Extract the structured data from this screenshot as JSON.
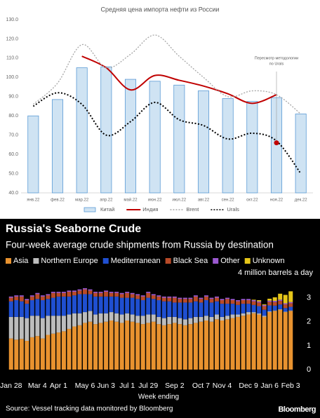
{
  "chart_data": [
    {
      "type": "combo",
      "title": "Средняя цена импорта нефти из России",
      "categories": [
        "янв.22",
        "фев.22",
        "мар.22",
        "апр.22",
        "май.22",
        "июн.22",
        "июл.22",
        "авг.22",
        "сен.22",
        "окт.22",
        "ноя.22",
        "дек.22"
      ],
      "ylim": [
        40,
        130
      ],
      "yticks": [
        {
          "value": 40,
          "label": "40.0"
        },
        {
          "value": 50,
          "label": "50.0"
        },
        {
          "value": 60,
          "label": "60.0"
        },
        {
          "value": 70,
          "label": "70.0"
        },
        {
          "value": 80,
          "label": "80.0"
        },
        {
          "value": 90,
          "label": "90.0"
        },
        {
          "value": 100,
          "label": "100.0"
        },
        {
          "value": 110,
          "label": "110.0"
        },
        {
          "value": 120,
          "label": "120.0"
        },
        {
          "value": 130,
          "label": "130.0"
        }
      ],
      "series": [
        {
          "name": "Китай",
          "kind": "bar",
          "color": "#cfe3f3",
          "stroke": "#5b9bd5",
          "values": [
            80,
            88.5,
            105,
            105.5,
            99,
            98,
            96,
            93,
            89,
            87.5,
            89.5,
            81
          ]
        },
        {
          "name": "Индия",
          "kind": "line",
          "dash": "solid",
          "color": "#c00000",
          "values": [
            null,
            null,
            111,
            105,
            93.5,
            101,
            98.5,
            95.5,
            91.5,
            86.5,
            91,
            null
          ]
        },
        {
          "name": "Brent",
          "kind": "line",
          "dash": "dotted",
          "color": "#a6a6a6",
          "values": [
            86,
            97,
            117,
            105,
            112,
            122,
            111,
            100,
            90,
            93,
            91,
            81
          ]
        },
        {
          "name": "Urals",
          "kind": "line",
          "dash": "dotted",
          "color": "#000000",
          "values": [
            85,
            92,
            86,
            70,
            77,
            87,
            78,
            75,
            68,
            71,
            67,
            50
          ]
        }
      ],
      "marker": {
        "category": "ноя.22",
        "value": 66,
        "color": "#c00000"
      },
      "annotation": [
        "Пересмотр методологии",
        "по Urals"
      ]
    },
    {
      "type": "stacked_bar",
      "title": "Russia's Seaborne Crude",
      "subtitle": "Four-week average crude shipments from Russia by destination",
      "y_label": "4 million barrels a day",
      "x_label": "Week ending",
      "source": "Source: Vessel tracking data monitored by Bloomberg",
      "brand": "Bloomberg",
      "ylim": [
        0,
        4.1
      ],
      "yticks": [
        0,
        1,
        2,
        3
      ],
      "categories": [
        "Jan 28",
        null,
        null,
        null,
        null,
        "Mar 4",
        null,
        null,
        null,
        "Apr 1",
        null,
        null,
        null,
        null,
        "May 6",
        null,
        null,
        null,
        "Jun 3",
        null,
        null,
        null,
        "Jul 1",
        null,
        null,
        null,
        "Jul 29",
        null,
        null,
        null,
        null,
        "Sep 2",
        null,
        null,
        null,
        null,
        "Oct 7",
        null,
        null,
        null,
        "Nov 4",
        null,
        null,
        null,
        null,
        "Dec 9",
        null,
        null,
        null,
        "Jan 6",
        null,
        null,
        null,
        "Feb 3"
      ],
      "series": [
        {
          "name": "Asia",
          "color": "#e8922f",
          "values": [
            1.3,
            1.25,
            1.28,
            1.2,
            1.35,
            1.4,
            1.3,
            1.45,
            1.5,
            1.55,
            1.6,
            1.7,
            1.8,
            1.85,
            1.95,
            2.0,
            1.9,
            1.95,
            2.0,
            2.05,
            2.0,
            1.95,
            2.05,
            2.0,
            1.95,
            1.9,
            1.95,
            2.0,
            1.9,
            1.85,
            1.9,
            1.95,
            1.9,
            1.85,
            1.9,
            1.95,
            2.0,
            2.05,
            2.0,
            2.1,
            2.05,
            2.1,
            2.15,
            2.2,
            2.25,
            2.3,
            2.35,
            2.3,
            2.2,
            2.4,
            2.45,
            2.5,
            2.4,
            2.45
          ]
        },
        {
          "name": "Northern Europe",
          "color": "#bdbdbd",
          "values": [
            0.9,
            0.95,
            0.92,
            0.95,
            0.9,
            0.85,
            0.85,
            0.8,
            0.75,
            0.7,
            0.65,
            0.6,
            0.55,
            0.5,
            0.45,
            0.45,
            0.4,
            0.4,
            0.35,
            0.35,
            0.35,
            0.35,
            0.3,
            0.3,
            0.3,
            0.35,
            0.35,
            0.3,
            0.3,
            0.3,
            0.3,
            0.25,
            0.25,
            0.25,
            0.25,
            0.25,
            0.2,
            0.2,
            0.2,
            0.2,
            0.15,
            0.15,
            0.15,
            0.1,
            0.1,
            0.1,
            0.05,
            0.05,
            0.05,
            0.03,
            0.02,
            0.02,
            0.02,
            0.02
          ]
        },
        {
          "name": "Mediterranean",
          "color": "#1f4fd1",
          "values": [
            0.65,
            0.7,
            0.65,
            0.6,
            0.65,
            0.7,
            0.75,
            0.7,
            0.75,
            0.8,
            0.8,
            0.75,
            0.75,
            0.8,
            0.75,
            0.7,
            0.75,
            0.7,
            0.7,
            0.65,
            0.7,
            0.7,
            0.65,
            0.7,
            0.7,
            0.65,
            0.7,
            0.65,
            0.7,
            0.7,
            0.65,
            0.6,
            0.65,
            0.7,
            0.65,
            0.65,
            0.6,
            0.65,
            0.6,
            0.55,
            0.55,
            0.5,
            0.45,
            0.4,
            0.4,
            0.35,
            0.3,
            0.3,
            0.25,
            0.25,
            0.2,
            0.2,
            0.15,
            0.15
          ]
        },
        {
          "name": "Black Sea",
          "color": "#b84a28",
          "values": [
            0.15,
            0.15,
            0.2,
            0.15,
            0.15,
            0.2,
            0.15,
            0.15,
            0.2,
            0.15,
            0.15,
            0.2,
            0.15,
            0.15,
            0.2,
            0.15,
            0.15,
            0.15,
            0.2,
            0.15,
            0.15,
            0.15,
            0.2,
            0.15,
            0.15,
            0.15,
            0.2,
            0.15,
            0.15,
            0.15,
            0.15,
            0.2,
            0.15,
            0.15,
            0.15,
            0.2,
            0.15,
            0.15,
            0.15,
            0.15,
            0.15,
            0.2,
            0.15,
            0.15,
            0.15,
            0.15,
            0.15,
            0.15,
            0.15,
            0.15,
            0.15,
            0.15,
            0.15,
            0.15
          ]
        },
        {
          "name": "Other",
          "color": "#9b59d0",
          "values": [
            0.05,
            0.05,
            0.05,
            0.05,
            0.05,
            0.05,
            0.05,
            0.05,
            0.05,
            0.05,
            0.05,
            0.05,
            0.05,
            0.05,
            0.05,
            0.05,
            0.05,
            0.05,
            0.05,
            0.05,
            0.05,
            0.05,
            0.05,
            0.05,
            0.05,
            0.05,
            0.05,
            0.05,
            0.05,
            0.05,
            0.05,
            0.05,
            0.05,
            0.05,
            0.05,
            0.05,
            0.05,
            0.05,
            0.05,
            0.05,
            0.05,
            0.05,
            0.05,
            0.05,
            0.05,
            0.05,
            0.05,
            0.05,
            0.05,
            0.05,
            0.05,
            0.05,
            0.05,
            0.05
          ]
        },
        {
          "name": "Unknown",
          "color": "#e6c619",
          "values": [
            0,
            0,
            0,
            0,
            0,
            0,
            0,
            0,
            0,
            0,
            0,
            0,
            0,
            0,
            0,
            0,
            0,
            0,
            0,
            0,
            0,
            0,
            0,
            0,
            0,
            0,
            0,
            0,
            0,
            0,
            0,
            0,
            0,
            0,
            0,
            0,
            0,
            0,
            0,
            0,
            0,
            0,
            0,
            0,
            0,
            0,
            0.02,
            0.05,
            0.03,
            0.08,
            0.15,
            0.25,
            0.35,
            0.45
          ]
        }
      ]
    }
  ]
}
